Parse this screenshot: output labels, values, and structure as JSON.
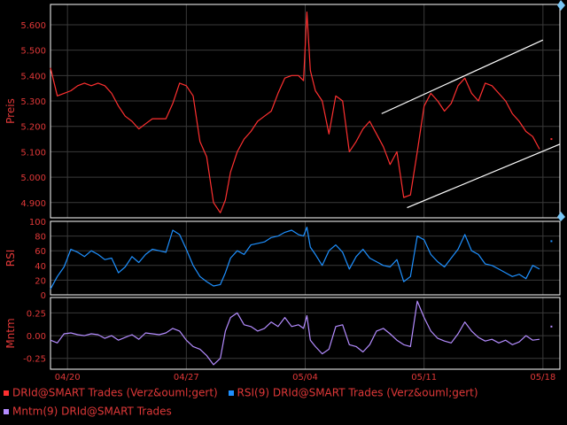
{
  "colors": {
    "background": "#000000",
    "panel_border": "#ffffff",
    "grid": "#3a3a3a",
    "axis_text": "#e03838",
    "price": "#ff3030",
    "rsi": "#1e90ff",
    "mntm": "#b48cff",
    "channel": "#ffffff",
    "handle": "#79c6f6"
  },
  "legend": [
    {
      "label": "DRId@SMART Trades (Verz&ouml;gert)",
      "color": "#ff3030"
    },
    {
      "label": "RSI(9) DRId@SMART Trades (Verz&ouml;gert)",
      "color": "#1e90ff"
    },
    {
      "label": "Mntm(9) DRId@SMART Trades",
      "color": "#b48cff"
    }
  ],
  "chart_data": [
    {
      "type": "line",
      "ylabel": "Preis",
      "ylim": [
        4.84,
        5.68
      ],
      "yticks": [
        "5.600",
        "5.500",
        "5.400",
        "5.300",
        "5.200",
        "5.100",
        "5.000",
        "4.900"
      ],
      "ytick_values": [
        5.6,
        5.5,
        5.4,
        5.3,
        5.2,
        5.1,
        5.0,
        4.9
      ],
      "x_range": [
        0,
        29
      ],
      "xticks": [
        "04/20",
        "04/27",
        "05/04",
        "05/11",
        "05/18"
      ],
      "xtick_values": [
        1,
        8,
        15,
        22,
        29
      ],
      "series": [
        {
          "x": [
            0,
            0.4,
            0.8,
            1.2,
            1.6,
            2.0,
            2.4,
            2.8,
            3.2,
            3.6,
            4.0,
            4.4,
            4.8,
            5.2,
            5.6,
            6.0,
            6.4,
            6.8,
            7.2,
            7.6,
            8.0,
            8.4,
            8.8,
            9.2,
            9.6,
            10.0,
            10.3,
            10.6,
            11.0,
            11.4,
            11.8,
            12.2,
            12.6,
            13.0,
            13.4,
            13.8,
            14.2,
            14.6,
            14.9,
            15.1,
            15.3,
            15.6,
            16.0,
            16.4,
            16.8,
            17.2,
            17.6,
            18.0,
            18.4,
            18.8,
            19.2,
            19.6,
            20.0,
            20.4,
            20.8,
            21.2,
            21.6,
            22.0,
            22.4,
            22.8,
            23.2,
            23.6,
            24.0,
            24.4,
            24.8,
            25.2,
            25.6,
            26.0,
            26.4,
            26.8,
            27.2,
            27.6,
            28.0,
            28.4,
            28.8
          ],
          "values": [
            5.43,
            5.32,
            5.33,
            5.34,
            5.36,
            5.37,
            5.36,
            5.37,
            5.36,
            5.33,
            5.28,
            5.24,
            5.22,
            5.19,
            5.21,
            5.23,
            5.23,
            5.23,
            5.29,
            5.37,
            5.36,
            5.32,
            5.14,
            5.08,
            4.9,
            4.86,
            4.91,
            5.02,
            5.1,
            5.15,
            5.18,
            5.22,
            5.24,
            5.26,
            5.33,
            5.39,
            5.4,
            5.4,
            5.38,
            5.65,
            5.42,
            5.34,
            5.3,
            5.17,
            5.32,
            5.3,
            5.1,
            5.14,
            5.19,
            5.22,
            5.17,
            5.12,
            5.05,
            5.1,
            4.92,
            4.93,
            5.1,
            5.28,
            5.33,
            5.3,
            5.26,
            5.29,
            5.36,
            5.39,
            5.33,
            5.3,
            5.37,
            5.36,
            5.33,
            5.3,
            5.25,
            5.22,
            5.18,
            5.16,
            5.11
          ]
        }
      ],
      "channel": {
        "upper": {
          "x": [
            19.5,
            29
          ],
          "y": [
            5.25,
            5.54
          ]
        },
        "lower": {
          "x": [
            21.0,
            30
          ],
          "y": [
            4.88,
            5.13
          ]
        }
      },
      "last_point": {
        "x": 29.5,
        "y": 5.15
      }
    },
    {
      "type": "line",
      "ylabel": "RSI",
      "ylim": [
        0,
        100
      ],
      "yticks": [
        "100",
        "80",
        "60",
        "40",
        "20",
        "0"
      ],
      "ytick_values": [
        100,
        80,
        60,
        40,
        20,
        0
      ],
      "series": [
        {
          "x": [
            0,
            0.4,
            0.8,
            1.2,
            1.6,
            2.0,
            2.4,
            2.8,
            3.2,
            3.6,
            4.0,
            4.4,
            4.8,
            5.2,
            5.6,
            6.0,
            6.4,
            6.8,
            7.2,
            7.6,
            8.0,
            8.4,
            8.8,
            9.2,
            9.6,
            10.0,
            10.3,
            10.6,
            11.0,
            11.4,
            11.8,
            12.2,
            12.6,
            13.0,
            13.4,
            13.8,
            14.2,
            14.6,
            14.9,
            15.1,
            15.3,
            15.6,
            16.0,
            16.4,
            16.8,
            17.2,
            17.6,
            18.0,
            18.4,
            18.8,
            19.2,
            19.6,
            20.0,
            20.4,
            20.8,
            21.2,
            21.6,
            22.0,
            22.4,
            22.8,
            23.2,
            23.6,
            24.0,
            24.4,
            24.8,
            25.2,
            25.6,
            26.0,
            26.4,
            26.8,
            27.2,
            27.6,
            28.0,
            28.4,
            28.8
          ],
          "values": [
            8,
            25,
            38,
            62,
            58,
            52,
            60,
            55,
            48,
            50,
            30,
            38,
            52,
            44,
            55,
            62,
            60,
            58,
            88,
            82,
            62,
            40,
            25,
            18,
            12,
            14,
            30,
            50,
            60,
            55,
            68,
            70,
            72,
            78,
            80,
            85,
            88,
            82,
            80,
            92,
            65,
            55,
            40,
            60,
            68,
            58,
            35,
            52,
            62,
            50,
            45,
            40,
            38,
            48,
            18,
            25,
            80,
            75,
            55,
            45,
            38,
            50,
            62,
            82,
            60,
            55,
            42,
            40,
            35,
            30,
            25,
            28,
            22,
            40,
            35
          ]
        }
      ],
      "last_point": {
        "x": 29.5,
        "y": 73
      }
    },
    {
      "type": "line",
      "ylabel": "Mntm",
      "ylim": [
        -0.37,
        0.42
      ],
      "yticks": [
        "0.25",
        "0.00",
        "-0.25"
      ],
      "ytick_values": [
        0.25,
        0.0,
        -0.25
      ],
      "series": [
        {
          "x": [
            0,
            0.4,
            0.8,
            1.2,
            1.6,
            2.0,
            2.4,
            2.8,
            3.2,
            3.6,
            4.0,
            4.4,
            4.8,
            5.2,
            5.6,
            6.0,
            6.4,
            6.8,
            7.2,
            7.6,
            8.0,
            8.4,
            8.8,
            9.2,
            9.6,
            10.0,
            10.3,
            10.6,
            11.0,
            11.4,
            11.8,
            12.2,
            12.6,
            13.0,
            13.4,
            13.8,
            14.2,
            14.6,
            14.9,
            15.1,
            15.3,
            15.6,
            16.0,
            16.4,
            16.8,
            17.2,
            17.6,
            18.0,
            18.4,
            18.8,
            19.2,
            19.6,
            20.0,
            20.4,
            20.8,
            21.2,
            21.6,
            22.0,
            22.4,
            22.8,
            23.2,
            23.6,
            24.0,
            24.4,
            24.8,
            25.2,
            25.6,
            26.0,
            26.4,
            26.8,
            27.2,
            27.6,
            28.0,
            28.4,
            28.8
          ],
          "values": [
            -0.05,
            -0.08,
            0.02,
            0.03,
            0.01,
            0.0,
            0.02,
            0.01,
            -0.03,
            0.0,
            -0.05,
            -0.02,
            0.01,
            -0.04,
            0.03,
            0.02,
            0.01,
            0.03,
            0.08,
            0.05,
            -0.05,
            -0.12,
            -0.15,
            -0.22,
            -0.32,
            -0.25,
            0.05,
            0.2,
            0.25,
            0.12,
            0.1,
            0.05,
            0.08,
            0.15,
            0.1,
            0.2,
            0.1,
            0.12,
            0.08,
            0.22,
            -0.05,
            -0.12,
            -0.2,
            -0.15,
            0.1,
            0.12,
            -0.1,
            -0.12,
            -0.18,
            -0.1,
            0.05,
            0.08,
            0.02,
            -0.05,
            -0.1,
            -0.12,
            0.38,
            0.2,
            0.05,
            -0.03,
            -0.06,
            -0.08,
            0.02,
            0.15,
            0.05,
            -0.02,
            -0.06,
            -0.04,
            -0.08,
            -0.05,
            -0.1,
            -0.07,
            0.0,
            -0.05,
            -0.04
          ]
        }
      ],
      "last_point": {
        "x": 29.5,
        "y": 0.1
      }
    }
  ]
}
